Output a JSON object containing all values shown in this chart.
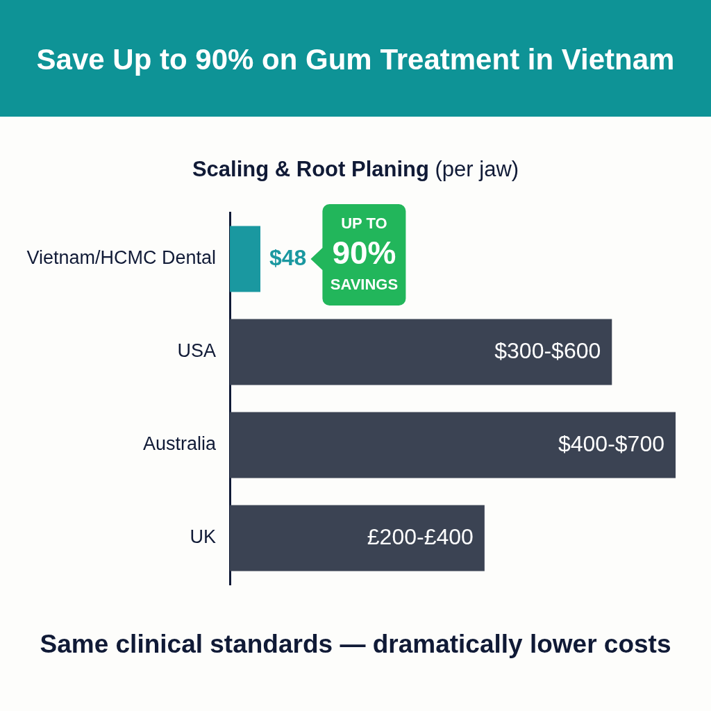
{
  "chart_data": {
    "type": "bar",
    "orientation": "horizontal",
    "tick_labels": "y",
    "title": "Save Up to 90% on Gum Treatment in Vietnam",
    "subtitle": "Scaling & Root Planing (per jaw)",
    "categories": [
      "Vietnam/HCMC Dental",
      "USA",
      "Australia",
      "UK"
    ],
    "values": [
      48,
      600,
      700,
      400
    ],
    "colors": [
      "#1a98a0",
      "#3b4353",
      "#3b4353",
      "#3b4353"
    ],
    "value_labels": [
      "$48",
      "$300-$600",
      "$400-$700",
      "£200-£400"
    ],
    "annotations": [
      "UP TO\n90%\nSAVINGS",
      "Same clinical standards — dramatically lower costs"
    ]
  }
}
